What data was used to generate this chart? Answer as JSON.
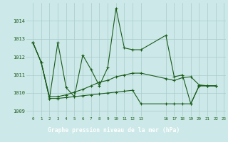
{
  "background_color": "#cce8e8",
  "grid_color": "#aacccc",
  "line_color": "#1a5c1a",
  "title": "Graphe pression niveau de la mer (hPa)",
  "title_bg": "#2d8c2d",
  "title_fg": "#ffffff",
  "ylim": [
    1008.7,
    1015.0
  ],
  "yticks": [
    1009,
    1010,
    1011,
    1012,
    1013,
    1014
  ],
  "series1_x": [
    0,
    1,
    2,
    3,
    4,
    5,
    6,
    7,
    8,
    9,
    10,
    11,
    12,
    13,
    16,
    17,
    18,
    19,
    20,
    21,
    22
  ],
  "series1_y": [
    1012.8,
    1011.7,
    1009.7,
    1012.8,
    1010.3,
    1009.8,
    1012.1,
    1011.3,
    1010.4,
    1011.4,
    1014.7,
    1012.5,
    1012.4,
    1012.4,
    1013.2,
    1010.9,
    1011.0,
    1009.4,
    1010.4,
    1010.4,
    1010.4
  ],
  "series2_x": [
    0,
    1,
    2,
    3,
    4,
    5,
    6,
    7,
    8,
    9,
    10,
    11,
    12,
    13,
    16,
    17,
    18,
    19,
    20,
    21,
    22
  ],
  "series2_y": [
    1012.8,
    1011.7,
    1009.8,
    1009.8,
    1009.9,
    1010.05,
    1010.2,
    1010.4,
    1010.6,
    1010.7,
    1010.9,
    1011.0,
    1011.1,
    1011.1,
    1010.8,
    1010.7,
    1010.85,
    1010.9,
    1010.45,
    1010.4,
    1010.4
  ],
  "series3_x": [
    0,
    1,
    2,
    3,
    4,
    5,
    6,
    7,
    8,
    9,
    10,
    11,
    12,
    13,
    16,
    17,
    18,
    19,
    20,
    21,
    22
  ],
  "series3_y": [
    1012.8,
    1011.7,
    1009.7,
    1009.7,
    1009.75,
    1009.8,
    1009.85,
    1009.9,
    1009.95,
    1010.0,
    1010.05,
    1010.1,
    1010.15,
    1009.4,
    1009.4,
    1009.4,
    1009.4,
    1009.4,
    1010.4,
    1010.4,
    1010.4
  ],
  "xlim": [
    -0.8,
    23.2
  ]
}
